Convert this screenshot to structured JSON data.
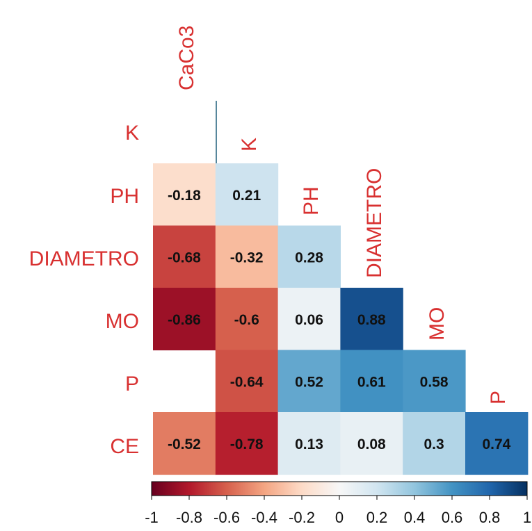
{
  "chart_data": {
    "type": "heatmap",
    "title": "",
    "variables": [
      "CaCo3",
      "K",
      "PH",
      "DIAMETRO",
      "MO",
      "P",
      "CE"
    ],
    "row_labels": [
      "K",
      "PH",
      "DIAMETRO",
      "MO",
      "P",
      "CE"
    ],
    "column_labels": [
      "CaCo3",
      "K",
      "PH",
      "DIAMETRO",
      "MO",
      "P"
    ],
    "cells": [
      {
        "row": "PH",
        "col": "CaCo3",
        "value": -0.18,
        "label": "-0.18"
      },
      {
        "row": "PH",
        "col": "K",
        "value": 0.21,
        "label": "0.21"
      },
      {
        "row": "DIAMETRO",
        "col": "CaCo3",
        "value": -0.68,
        "label": "-0.68"
      },
      {
        "row": "DIAMETRO",
        "col": "K",
        "value": -0.32,
        "label": "-0.32"
      },
      {
        "row": "DIAMETRO",
        "col": "PH",
        "value": 0.28,
        "label": "0.28"
      },
      {
        "row": "MO",
        "col": "CaCo3",
        "value": -0.86,
        "label": "-0.86"
      },
      {
        "row": "MO",
        "col": "K",
        "value": -0.6,
        "label": "-0.6"
      },
      {
        "row": "MO",
        "col": "PH",
        "value": 0.06,
        "label": "0.06"
      },
      {
        "row": "MO",
        "col": "DIAMETRO",
        "value": 0.88,
        "label": "0.88"
      },
      {
        "row": "P",
        "col": "K",
        "value": -0.64,
        "label": "-0.64"
      },
      {
        "row": "P",
        "col": "PH",
        "value": 0.52,
        "label": "0.52"
      },
      {
        "row": "P",
        "col": "DIAMETRO",
        "value": 0.61,
        "label": "0.61"
      },
      {
        "row": "P",
        "col": "MO",
        "value": 0.58,
        "label": "0.58"
      },
      {
        "row": "CE",
        "col": "CaCo3",
        "value": -0.52,
        "label": "-0.52"
      },
      {
        "row": "CE",
        "col": "K",
        "value": -0.78,
        "label": "-0.78"
      },
      {
        "row": "CE",
        "col": "PH",
        "value": 0.13,
        "label": "0.13"
      },
      {
        "row": "CE",
        "col": "DIAMETRO",
        "value": 0.08,
        "label": "0.08"
      },
      {
        "row": "CE",
        "col": "MO",
        "value": 0.3,
        "label": "0.3"
      },
      {
        "row": "CE",
        "col": "P",
        "value": 0.74,
        "label": "0.74"
      }
    ],
    "colorbar": {
      "range": [
        -1,
        1
      ],
      "ticks": [
        {
          "value": -1,
          "label": "-1"
        },
        {
          "value": -0.8,
          "label": "-0.8"
        },
        {
          "value": -0.6,
          "label": "-0.6"
        },
        {
          "value": -0.4,
          "label": "-0.4"
        },
        {
          "value": -0.2,
          "label": "-0.2"
        },
        {
          "value": 0,
          "label": "0"
        },
        {
          "value": 0.2,
          "label": "0.2"
        },
        {
          "value": 0.4,
          "label": "0.4"
        },
        {
          "value": 0.6,
          "label": "0.6"
        },
        {
          "value": 0.8,
          "label": "0.8"
        },
        {
          "value": 1,
          "label": "1"
        }
      ],
      "orientation": "horizontal",
      "placement": "bottom"
    },
    "colors": {
      "label": "#d83030",
      "scale": [
        "#67001f",
        "#b2182b",
        "#d6604d",
        "#f4a582",
        "#fddbc7",
        "#f7f7f7",
        "#d1e5f0",
        "#92c5de",
        "#4393c3",
        "#2166ac",
        "#053061"
      ]
    }
  }
}
